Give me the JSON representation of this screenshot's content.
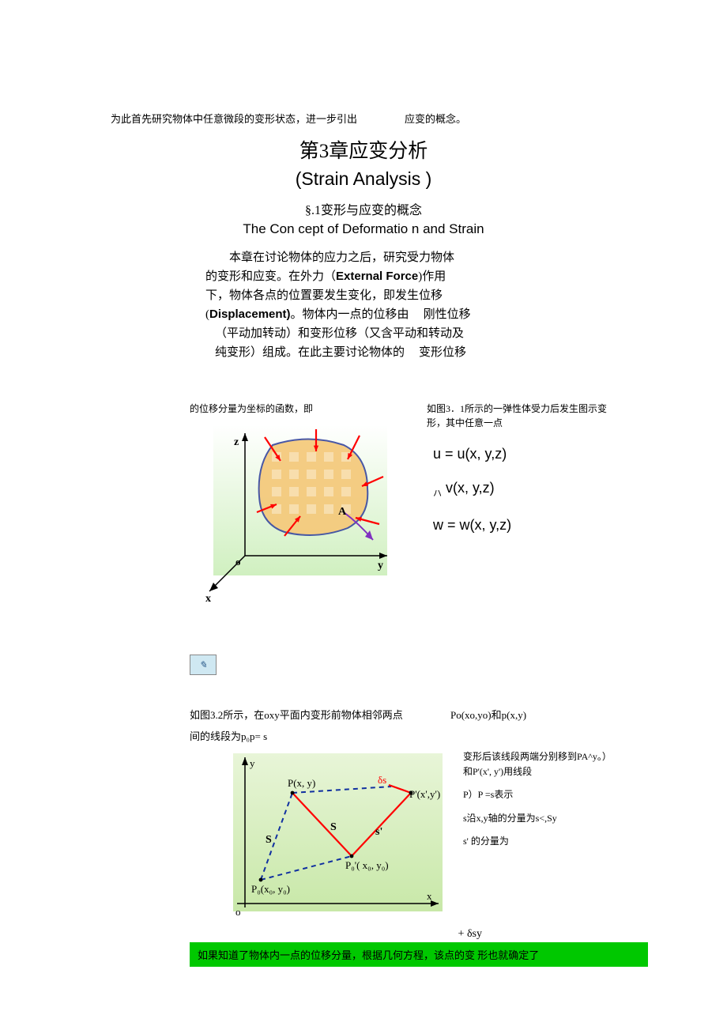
{
  "intro": {
    "part1": "为此首先研究物体中任意微段的变形状态，进一步引出",
    "part2": "应变的概念。"
  },
  "title_ch": "第3章应变分析",
  "title_en": "(Strain Analysis )",
  "section_ch": "§.1变形与应变的概念",
  "section_en": "The Con cept of Deformatio n and Strain",
  "para": {
    "l1": "本章在讨论物体的应力之后，研究受力物体",
    "l2a": "的变形和应变。在外力（",
    "l2b": "External Force",
    "l2c": ")作用",
    "l3": "下，物体各点的位置要发生变化，即发生位移",
    "l4a": "(",
    "l4b": "Displacement)",
    "l4c": "。物体内一点的位移由",
    "l4d": "刚性位移",
    "l5": "（平动加转动）和变形位移（又含平动和转动及",
    "l6a": "纯变形）组成。在此主要讨论物体的",
    "l6b": "变形位移"
  },
  "caption_left": "的位移分量为坐标的函数，即",
  "right_txt": "如图3．1所示的一弹性体受力后发生图示变形，其中任意一点",
  "eq_u": "u = u(x, y,z)",
  "eq_v_pre": "ハ",
  "eq_v": "v(x, y,z)",
  "eq_w": "w = w(x, y,z)",
  "fig1": {
    "bg_top": "#ffffff",
    "bg_bottom": "#d0f0c0",
    "blob_fill": "#f5c97a",
    "blob_stroke": "#3a4aa0",
    "arrow_color": "#ff0000",
    "axis_color": "#000000",
    "labels": {
      "x": "x",
      "y": "y",
      "z": "z",
      "o": "o",
      "A": "A"
    }
  },
  "row3": {
    "p1": "如图3.2所示，在oxy平面内变形前物体相邻两点",
    "p2": "Po(xo,yo)和p(x,y)",
    "line2": "间的线段为p₀p= s"
  },
  "fig2_right": {
    "l1": "变形后该线段两端分别移到PA^y。）和P'(x', y')用线段",
    "l2": "P）P =s表示",
    "l3": "s沿x,y轴的分量为s<,Sy",
    "l4": "s' 的分量为"
  },
  "fig2": {
    "bg_top": "#e8f5d8",
    "bg_bottom": "#c8e8a8",
    "axis_color": "#000000",
    "solid_color": "#ff0000",
    "dash_color": "#1030a0",
    "labels": {
      "y": "y",
      "x": "x",
      "o": "o",
      "P": "P(x, y)",
      "deltaS": "δs",
      "Pprime": "P'(x',y')",
      "S_left": "S",
      "S_mid": "S",
      "s_right": "s'",
      "P0prime": "P₀'( x₀, y₀)",
      "P0": "P₀(x₀, y₀)"
    }
  },
  "delta": "+ δsy",
  "green_text": "如果知道了物体内一点的位移分量，根据几何方程，该点的变 形也就确定了"
}
